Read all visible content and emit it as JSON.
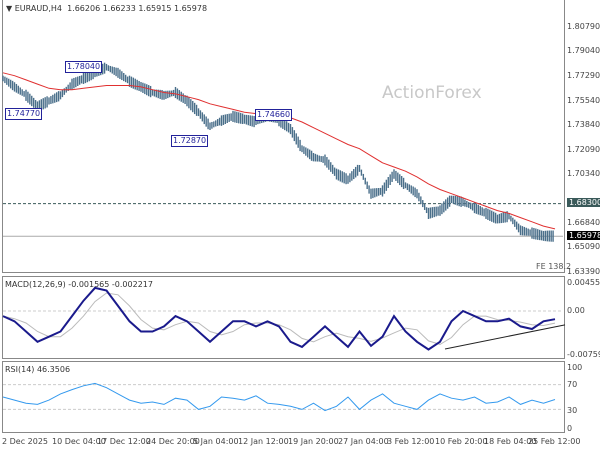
{
  "header": {
    "symbol": "EURAUD,H4",
    "ohlc": "1.66206 1.66233 1.65915 1.65978"
  },
  "watermark": "ActionForex",
  "price_axis": [
    "1.80790",
    "1.79040",
    "1.77290",
    "1.75540",
    "1.73840",
    "1.72090",
    "1.70340",
    "1.68300",
    "1.66840",
    "1.65978",
    "1.65090",
    "1.63390"
  ],
  "price_marker": {
    "level": "1.68300",
    "current": "1.65978"
  },
  "annotations": [
    "1.78040",
    "1.74770",
    "1.72870",
    "1.74660"
  ],
  "fe_label": "FE 138.2",
  "macd": {
    "label": "MACD(12,26,9) -0.001565 -0.002217",
    "axis": [
      "0.004553",
      "0.00",
      "-0.007593"
    ]
  },
  "rsi": {
    "label": "RSI(14) 46.3506",
    "axis": [
      "100",
      "70",
      "30",
      "0"
    ]
  },
  "dates": [
    "2 Dec 2025",
    "10 Dec 04:00",
    "17 Dec 12:00",
    "24 Dec 20:00",
    "5 Jan 04:00",
    "12 Jan 12:00",
    "19 Jan 20:00",
    "27 Jan 04:00",
    "3 Feb 12:00",
    "10 Feb 20:00",
    "18 Feb 04:00",
    "25 Feb 12:00"
  ],
  "colors": {
    "price": "#4a6f8a",
    "ma": "#e03030",
    "macd": "#1a1a8c",
    "signal": "#bbbbbb",
    "rsi": "#3399ee"
  },
  "chart_data": {
    "type": "line",
    "price": [
      1.772,
      1.766,
      1.76,
      1.752,
      1.756,
      1.76,
      1.768,
      1.772,
      1.776,
      1.78,
      1.776,
      1.77,
      1.766,
      1.762,
      1.76,
      1.762,
      1.756,
      1.748,
      1.738,
      1.742,
      1.745,
      1.743,
      1.741,
      1.745,
      1.742,
      1.736,
      1.722,
      1.716,
      1.714,
      1.704,
      1.7,
      1.708,
      1.69,
      1.692,
      1.704,
      1.696,
      1.69,
      1.676,
      1.678,
      1.686,
      1.684,
      1.68,
      1.676,
      1.672,
      1.674,
      1.664,
      1.662,
      1.66,
      1.6598
    ],
    "ma": [
      1.776,
      1.774,
      1.771,
      1.768,
      1.765,
      1.764,
      1.764,
      1.765,
      1.766,
      1.767,
      1.767,
      1.767,
      1.766,
      1.764,
      1.762,
      1.761,
      1.759,
      1.757,
      1.754,
      1.752,
      1.75,
      1.748,
      1.747,
      1.746,
      1.745,
      1.744,
      1.741,
      1.737,
      1.733,
      1.729,
      1.725,
      1.722,
      1.717,
      1.712,
      1.709,
      1.706,
      1.702,
      1.697,
      1.693,
      1.69,
      1.687,
      1.684,
      1.681,
      1.678,
      1.676,
      1.673,
      1.67,
      1.667,
      1.665
    ],
    "macd": [
      -0.001,
      -0.002,
      -0.004,
      -0.006,
      -0.005,
      -0.004,
      -0.001,
      0.002,
      0.0045,
      0.004,
      0.001,
      -0.002,
      -0.004,
      -0.004,
      -0.003,
      -0.001,
      -0.002,
      -0.004,
      -0.006,
      -0.004,
      -0.002,
      -0.002,
      -0.003,
      -0.002,
      -0.003,
      -0.006,
      -0.007,
      -0.005,
      -0.003,
      -0.005,
      -0.007,
      -0.004,
      -0.0068,
      -0.005,
      -0.001,
      -0.004,
      -0.006,
      -0.0075,
      -0.006,
      -0.002,
      0,
      -0.001,
      -0.002,
      -0.002,
      -0.0015,
      -0.003,
      -0.0035,
      -0.002,
      -0.0016
    ],
    "rsi": [
      50,
      45,
      40,
      38,
      45,
      55,
      62,
      68,
      72,
      65,
      55,
      45,
      40,
      42,
      38,
      48,
      45,
      30,
      35,
      50,
      48,
      45,
      52,
      40,
      38,
      35,
      30,
      40,
      28,
      35,
      50,
      30,
      45,
      55,
      40,
      35,
      30,
      45,
      55,
      48,
      45,
      50,
      40,
      42,
      50,
      38,
      45,
      40,
      46
    ]
  }
}
